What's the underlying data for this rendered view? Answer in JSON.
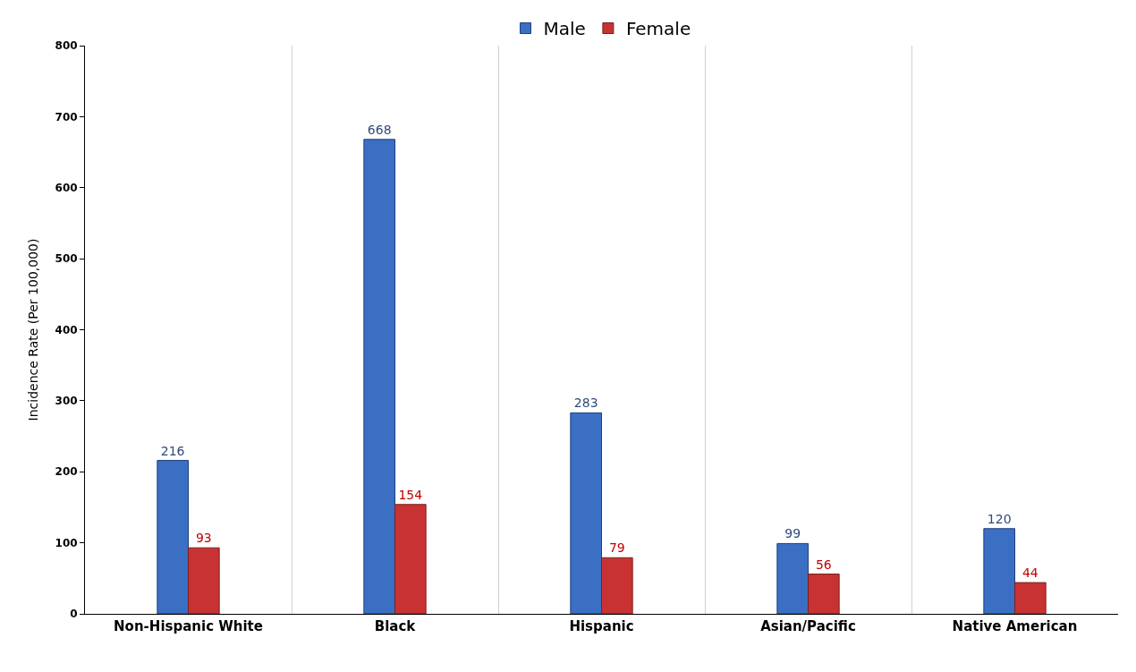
{
  "chart_data": {
    "type": "bar",
    "ylabel": "Incidence Rate (Per 100,000)",
    "categories": [
      "Non-Hispanic White",
      "Black",
      "Hispanic",
      "Asian/Pacific",
      "Native American"
    ],
    "series": [
      {
        "name": "Male",
        "color": "#3a6fc4",
        "values": [
          216,
          668,
          283,
          99,
          120
        ]
      },
      {
        "name": "Female",
        "color": "#c83232",
        "values": [
          93,
          154,
          79,
          56,
          44
        ]
      }
    ],
    "ylim": [
      0,
      800
    ],
    "yticks": [
      0,
      100,
      200,
      300,
      400,
      500,
      600,
      700,
      800
    ],
    "grid": "x",
    "legend": "top",
    "data_labels": true
  }
}
